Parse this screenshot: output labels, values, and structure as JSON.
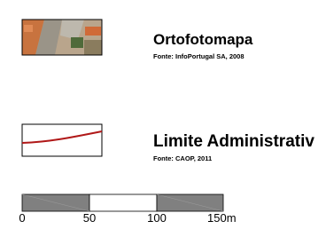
{
  "legend": {
    "items": [
      {
        "title": "Ortofotomapa",
        "source": "Fonte: InfoPortugal SA, 2008"
      },
      {
        "title": "Limite Administrativ",
        "source": "Fonte: CAOP, 2011"
      }
    ]
  },
  "scale_bar": {
    "labels": [
      "0",
      "50",
      "100",
      "150m"
    ]
  }
}
